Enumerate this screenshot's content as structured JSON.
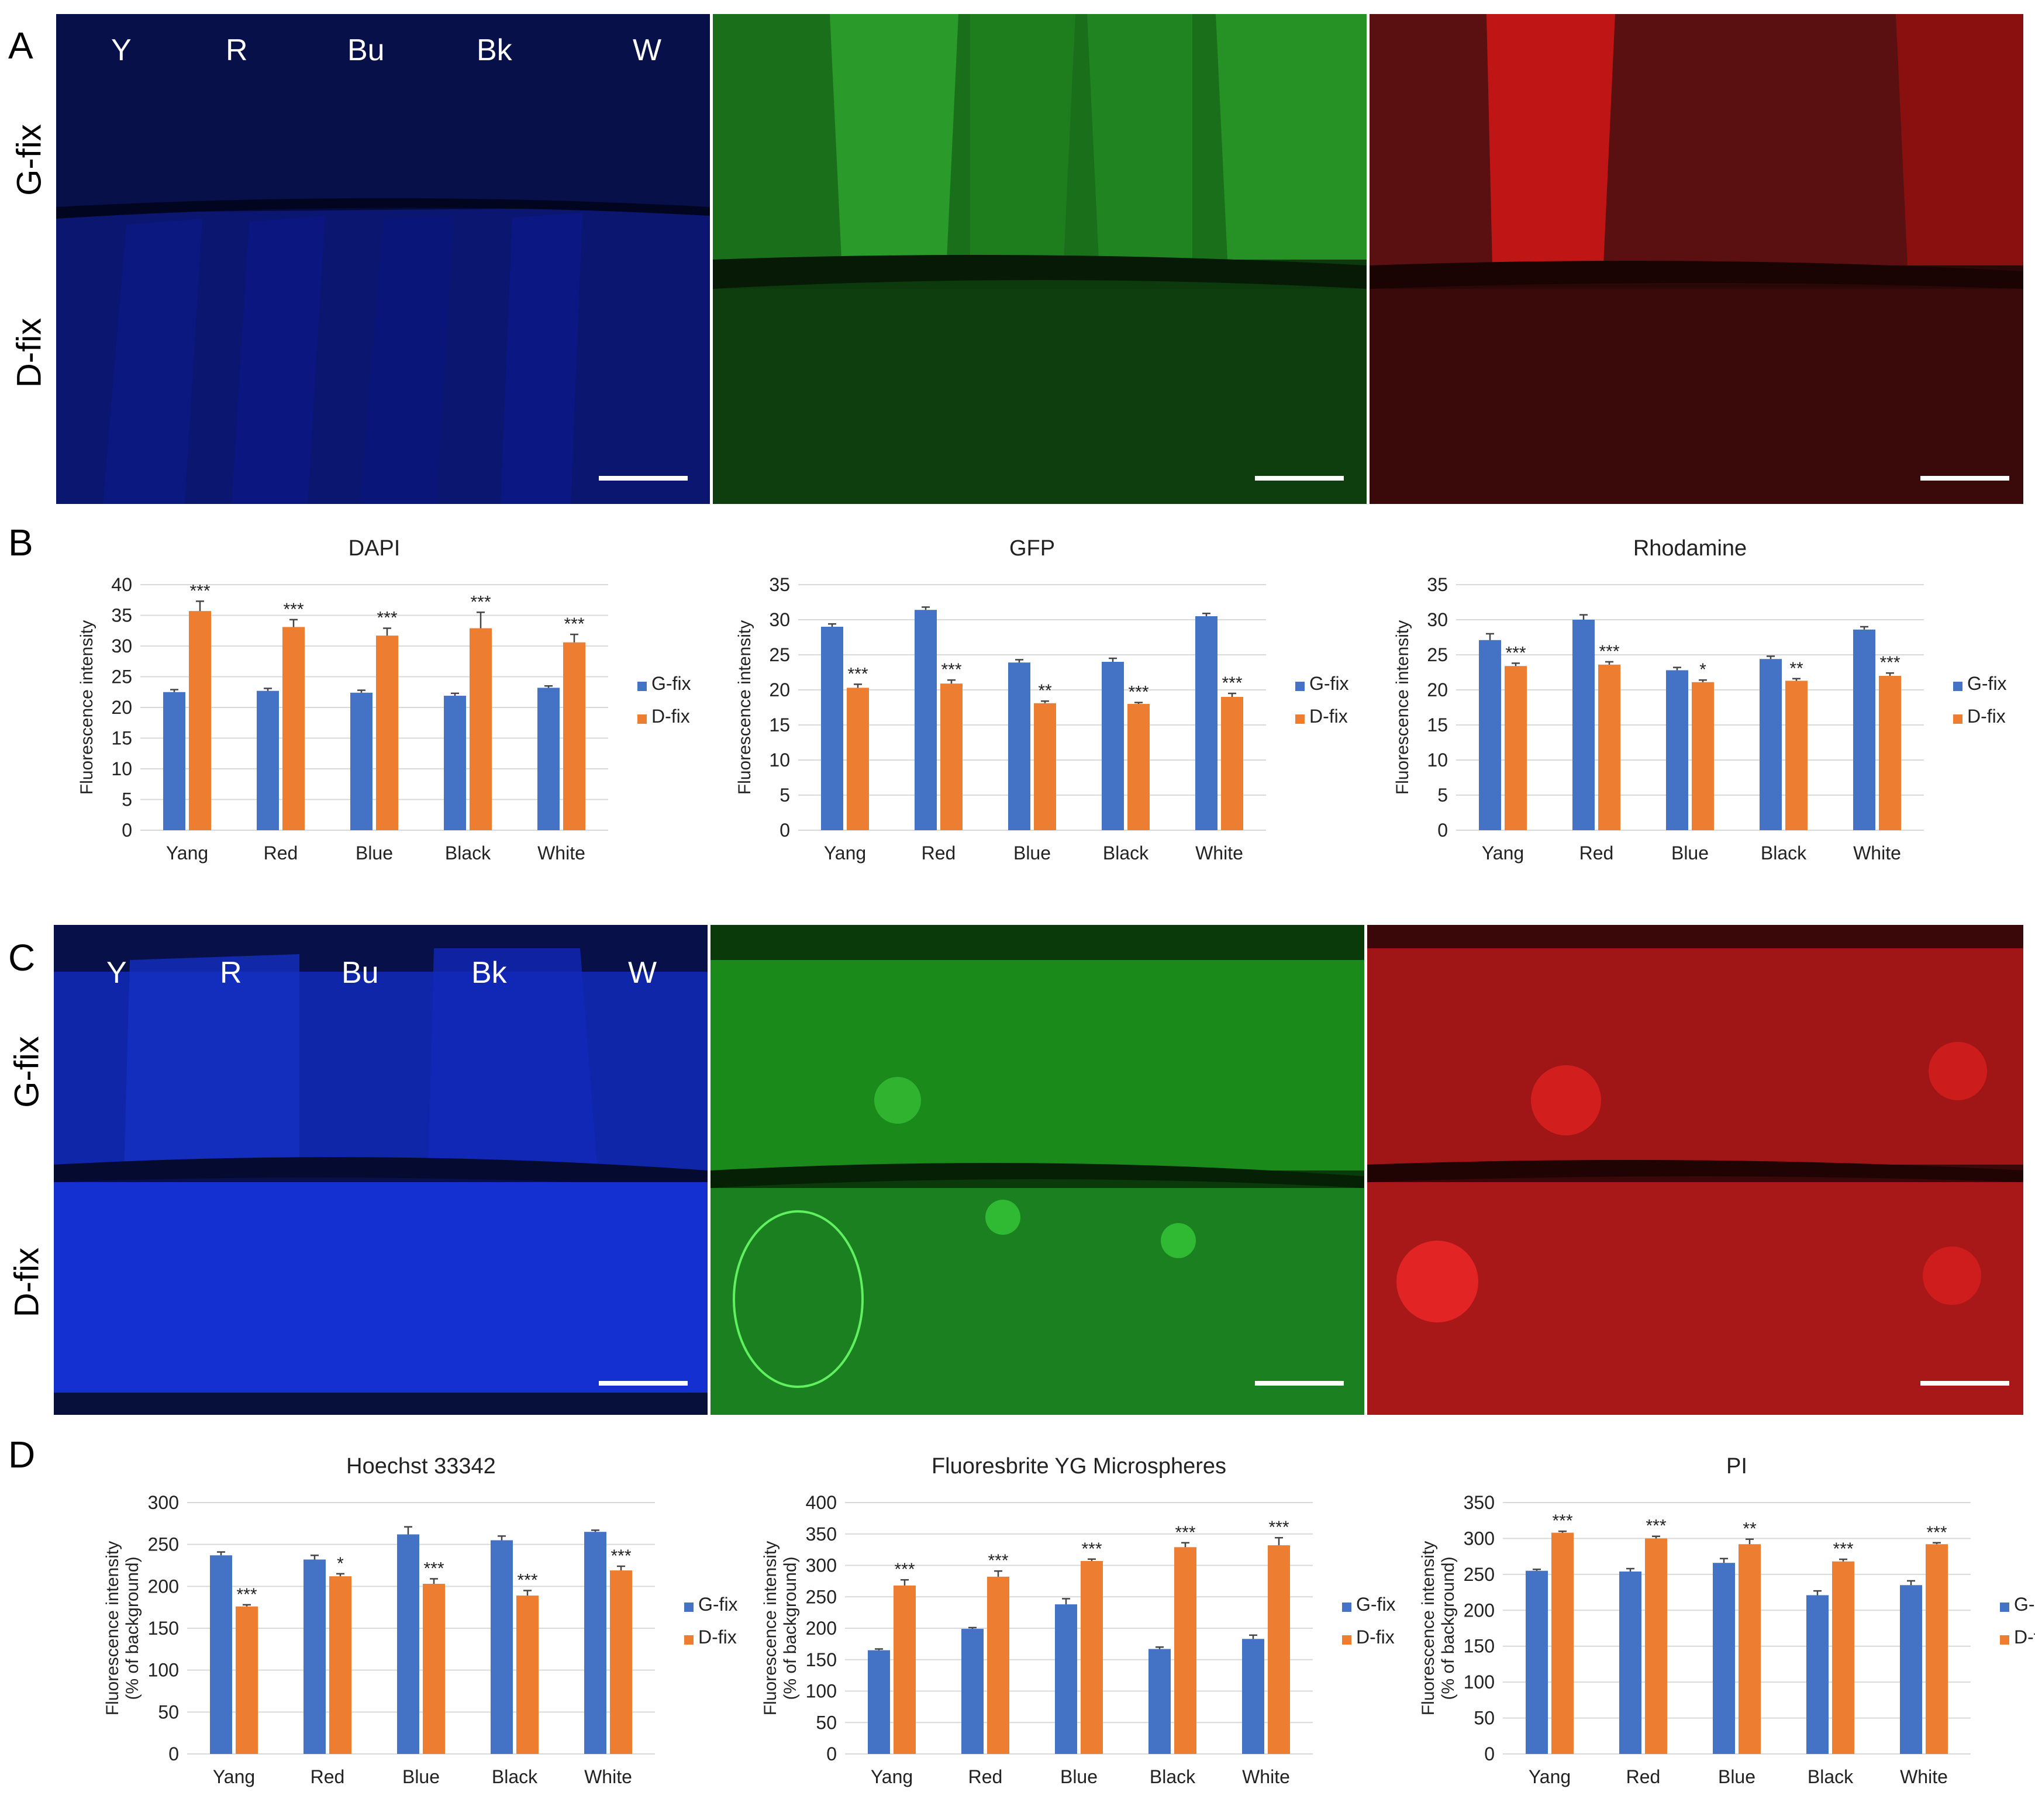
{
  "panels": {
    "A": "A",
    "B": "B",
    "C": "C",
    "D": "D"
  },
  "rows": {
    "g": "G-fix",
    "d": "D-fix"
  },
  "cols": [
    "Y",
    "R",
    "Bu",
    "Bk",
    "W"
  ],
  "colors": {
    "gfix": "#4472C4",
    "dfix": "#ED7D31",
    "grid": "#D9D9D9",
    "blue": "#0a1a8a",
    "green": "#1f8f1f",
    "red": "#b01010"
  },
  "chart_data": [
    {
      "id": "b1",
      "type": "bar",
      "title": "DAPI",
      "ylabel": "Fluorescence intensity",
      "ylim": [
        0,
        40
      ],
      "yticks": [
        0,
        5,
        10,
        15,
        20,
        25,
        30,
        35,
        40
      ],
      "categories": [
        "Yang",
        "Red",
        "Blue",
        "Black",
        "White"
      ],
      "series": [
        {
          "name": "G-fix",
          "values": [
            22.5,
            22.7,
            22.4,
            21.9,
            23.2
          ],
          "errors": [
            0.4,
            0.4,
            0.4,
            0.4,
            0.3
          ]
        },
        {
          "name": "D-fix",
          "values": [
            35.7,
            33.1,
            31.7,
            32.9,
            30.6
          ],
          "errors": [
            1.6,
            1.2,
            1.2,
            2.6,
            1.3
          ]
        }
      ],
      "sig": [
        "***",
        "***",
        "***",
        "***",
        "***"
      ]
    },
    {
      "id": "b2",
      "type": "bar",
      "title": "GFP",
      "ylabel": "Fluorescence intensity",
      "ylim": [
        0,
        35
      ],
      "yticks": [
        0,
        5,
        10,
        15,
        20,
        25,
        30,
        35
      ],
      "categories": [
        "Yang",
        "Red",
        "Blue",
        "Black",
        "White"
      ],
      "series": [
        {
          "name": "G-fix",
          "values": [
            29,
            31.4,
            23.9,
            24,
            30.5
          ],
          "errors": [
            0.4,
            0.4,
            0.4,
            0.5,
            0.4
          ]
        },
        {
          "name": "D-fix",
          "values": [
            20.3,
            20.9,
            18.1,
            18,
            19
          ],
          "errors": [
            0.5,
            0.5,
            0.3,
            0.2,
            0.5
          ]
        }
      ],
      "sig": [
        "***",
        "***",
        "**",
        "***",
        "***"
      ]
    },
    {
      "id": "b3",
      "type": "bar",
      "title": "Rhodamine",
      "ylabel": "Fluorescence intensity",
      "ylim": [
        0,
        35
      ],
      "yticks": [
        0,
        5,
        10,
        15,
        20,
        25,
        30,
        35
      ],
      "categories": [
        "Yang",
        "Red",
        "Blue",
        "Black",
        "White"
      ],
      "series": [
        {
          "name": "G-fix",
          "values": [
            27.1,
            30,
            22.8,
            24.4,
            28.6
          ],
          "errors": [
            0.9,
            0.7,
            0.4,
            0.4,
            0.4
          ]
        },
        {
          "name": "D-fix",
          "values": [
            23.4,
            23.6,
            21.1,
            21.3,
            22
          ],
          "errors": [
            0.4,
            0.4,
            0.3,
            0.3,
            0.4
          ]
        }
      ],
      "sig": [
        "***",
        "***",
        "*",
        "**",
        "***"
      ]
    },
    {
      "id": "d1",
      "type": "bar",
      "title": "Hoechst 33342",
      "ylabel": "Fluorescence intensity",
      "ylabel2": "(% of background)",
      "ylim": [
        0,
        300
      ],
      "yticks": [
        0,
        50,
        100,
        150,
        200,
        250,
        300
      ],
      "categories": [
        "Yang",
        "Red",
        "Blue",
        "Black",
        "White"
      ],
      "series": [
        {
          "name": "G-fix",
          "values": [
            237,
            232,
            262,
            255,
            265
          ],
          "errors": [
            4,
            5,
            9,
            5,
            2
          ]
        },
        {
          "name": "D-fix",
          "values": [
            176,
            212,
            203,
            189,
            219
          ],
          "errors": [
            2,
            3,
            6,
            6,
            5
          ]
        }
      ],
      "sig": [
        "***",
        "*",
        "***",
        "***",
        "***"
      ]
    },
    {
      "id": "d2",
      "type": "bar",
      "title": "Fluoresbrite YG Microspheres",
      "ylabel": "Fluorescence intensity",
      "ylabel2": "(% of background)",
      "ylim": [
        0,
        400
      ],
      "yticks": [
        0,
        50,
        100,
        150,
        200,
        250,
        300,
        350,
        400
      ],
      "categories": [
        "Yang",
        "Red",
        "Blue",
        "Black",
        "White"
      ],
      "series": [
        {
          "name": "G-fix",
          "values": [
            165,
            199,
            238,
            167,
            183
          ],
          "errors": [
            2,
            2,
            9,
            3,
            6
          ]
        },
        {
          "name": "D-fix",
          "values": [
            268,
            282,
            307,
            329,
            332
          ],
          "errors": [
            9,
            9,
            3,
            7,
            12
          ]
        }
      ],
      "sig": [
        "***",
        "***",
        "***",
        "***",
        "***"
      ]
    },
    {
      "id": "d3",
      "type": "bar",
      "title": "PI",
      "ylabel": "Fluorescence intensity",
      "ylabel2": "(% of background)",
      "ylim": [
        0,
        350
      ],
      "yticks": [
        0,
        50,
        100,
        150,
        200,
        250,
        300,
        350
      ],
      "categories": [
        "Yang",
        "Red",
        "Blue",
        "Black",
        "White"
      ],
      "series": [
        {
          "name": "G-fix",
          "values": [
            255,
            254,
            266,
            221,
            235
          ],
          "errors": [
            2,
            4,
            6,
            6,
            6
          ]
        },
        {
          "name": "D-fix",
          "values": [
            308,
            300,
            292,
            268,
            292
          ],
          "errors": [
            2,
            3,
            7,
            3,
            2
          ]
        }
      ],
      "sig": [
        "***",
        "***",
        "**",
        "***",
        "***"
      ]
    }
  ]
}
